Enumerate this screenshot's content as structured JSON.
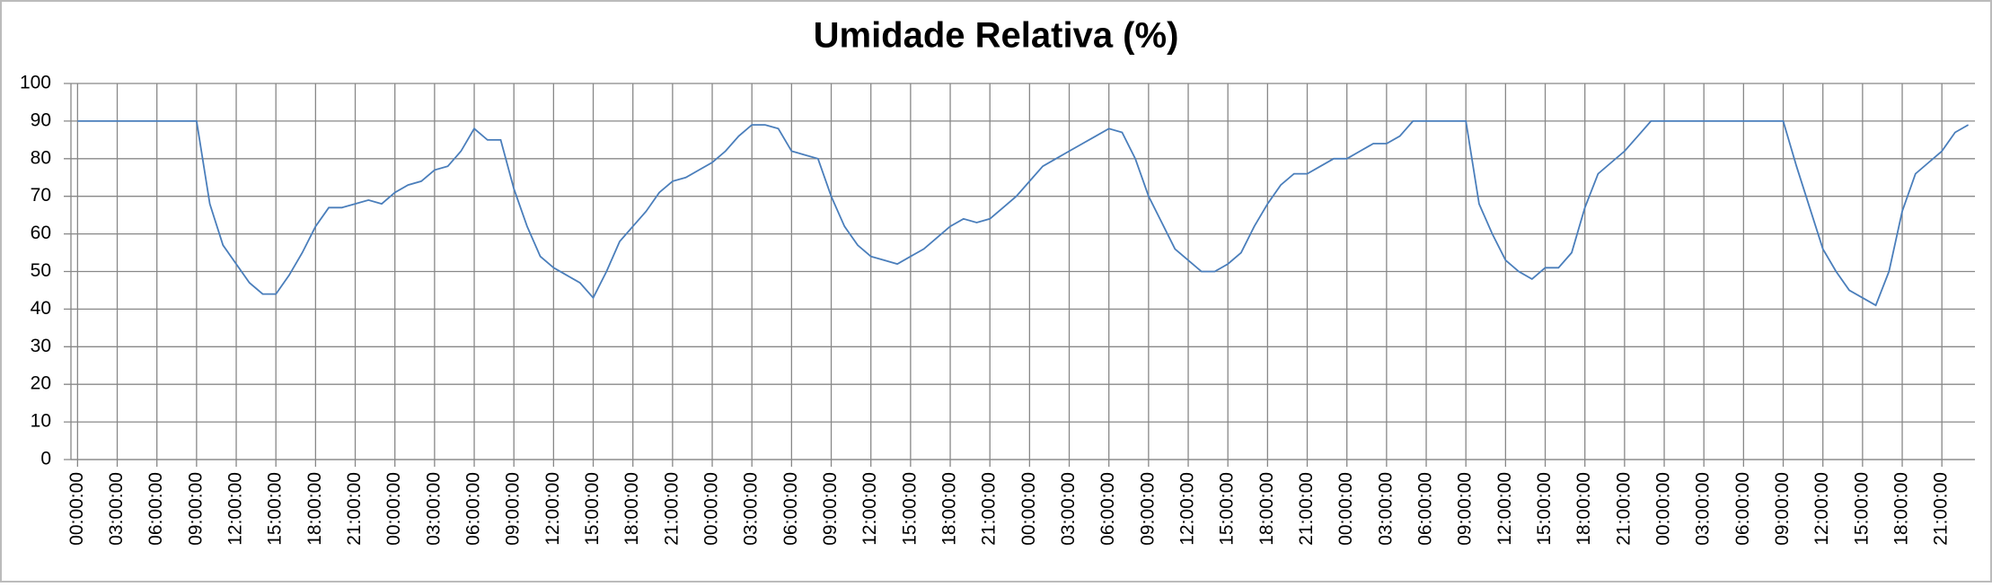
{
  "chart_data": {
    "type": "line",
    "title": "Umidade Relativa (%)",
    "categories": [
      "00:00:00",
      null,
      null,
      "03:00:00",
      null,
      null,
      "06:00:00",
      null,
      null,
      "09:00:00",
      null,
      null,
      "12:00:00",
      null,
      null,
      "15:00:00",
      null,
      null,
      "18:00:00",
      null,
      null,
      "21:00:00",
      null,
      null,
      "00:00:00",
      null,
      null,
      "03:00:00",
      null,
      null,
      "06:00:00",
      null,
      null,
      "09:00:00",
      null,
      null,
      "12:00:00",
      null,
      null,
      "15:00:00",
      null,
      null,
      "18:00:00",
      null,
      null,
      "21:00:00",
      null,
      null,
      "00:00:00",
      null,
      null,
      "03:00:00",
      null,
      null,
      "06:00:00",
      null,
      null,
      "09:00:00",
      null,
      null,
      "12:00:00",
      null,
      null,
      "15:00:00",
      null,
      null,
      "18:00:00",
      null,
      null,
      "21:00:00",
      null,
      null,
      "00:00:00",
      null,
      null,
      "03:00:00",
      null,
      null,
      "06:00:00",
      null,
      null,
      "09:00:00",
      null,
      null,
      "12:00:00",
      null,
      null,
      "15:00:00",
      null,
      null,
      "18:00:00",
      null,
      null,
      "21:00:00",
      null,
      null,
      "00:00:00",
      null,
      null,
      "03:00:00",
      null,
      null,
      "06:00:00",
      null,
      null,
      "09:00:00",
      null,
      null,
      "12:00:00",
      null,
      null,
      "15:00:00",
      null,
      null,
      "18:00:00",
      null,
      null,
      "21:00:00",
      null,
      null,
      "00:00:00",
      null,
      null,
      "03:00:00",
      null,
      null,
      "06:00:00",
      null,
      null,
      "09:00:00",
      null,
      null,
      "12:00:00",
      null,
      null,
      "15:00:00",
      null,
      null,
      "18:00:00",
      null,
      null,
      "21:00:00",
      null,
      null
    ],
    "series": [
      {
        "color": "#4a7ebb",
        "values": [
          90,
          90,
          90,
          90,
          90,
          90,
          90,
          90,
          90,
          90,
          68,
          57,
          52,
          47,
          44,
          44,
          49,
          55,
          62,
          67,
          67,
          68,
          69,
          68,
          71,
          73,
          74,
          77,
          78,
          82,
          88,
          85,
          85,
          72,
          62,
          54,
          51,
          49,
          47,
          43,
          50,
          58,
          62,
          66,
          71,
          74,
          75,
          77,
          79,
          82,
          86,
          89,
          89,
          88,
          82,
          81,
          80,
          70,
          62,
          57,
          54,
          53,
          52,
          54,
          56,
          59,
          62,
          64,
          63,
          64,
          67,
          70,
          74,
          78,
          80,
          82,
          84,
          86,
          88,
          87,
          80,
          70,
          63,
          56,
          53,
          50,
          50,
          52,
          55,
          62,
          68,
          73,
          76,
          76,
          78,
          80,
          80,
          82,
          84,
          84,
          86,
          90,
          90,
          90,
          90,
          90,
          68,
          60,
          53,
          50,
          48,
          51,
          51,
          55,
          67,
          76,
          79,
          82,
          86,
          90,
          90,
          90,
          90,
          90,
          90,
          90,
          90,
          90,
          90,
          90,
          78,
          67,
          56,
          50,
          45,
          43,
          41,
          50,
          66,
          76,
          79,
          82,
          87,
          89
        ]
      }
    ],
    "ylim": [
      0,
      100
    ],
    "yticks": [
      0,
      10,
      20,
      30,
      40,
      50,
      60,
      70,
      80,
      90,
      100
    ],
    "grid": true
  }
}
